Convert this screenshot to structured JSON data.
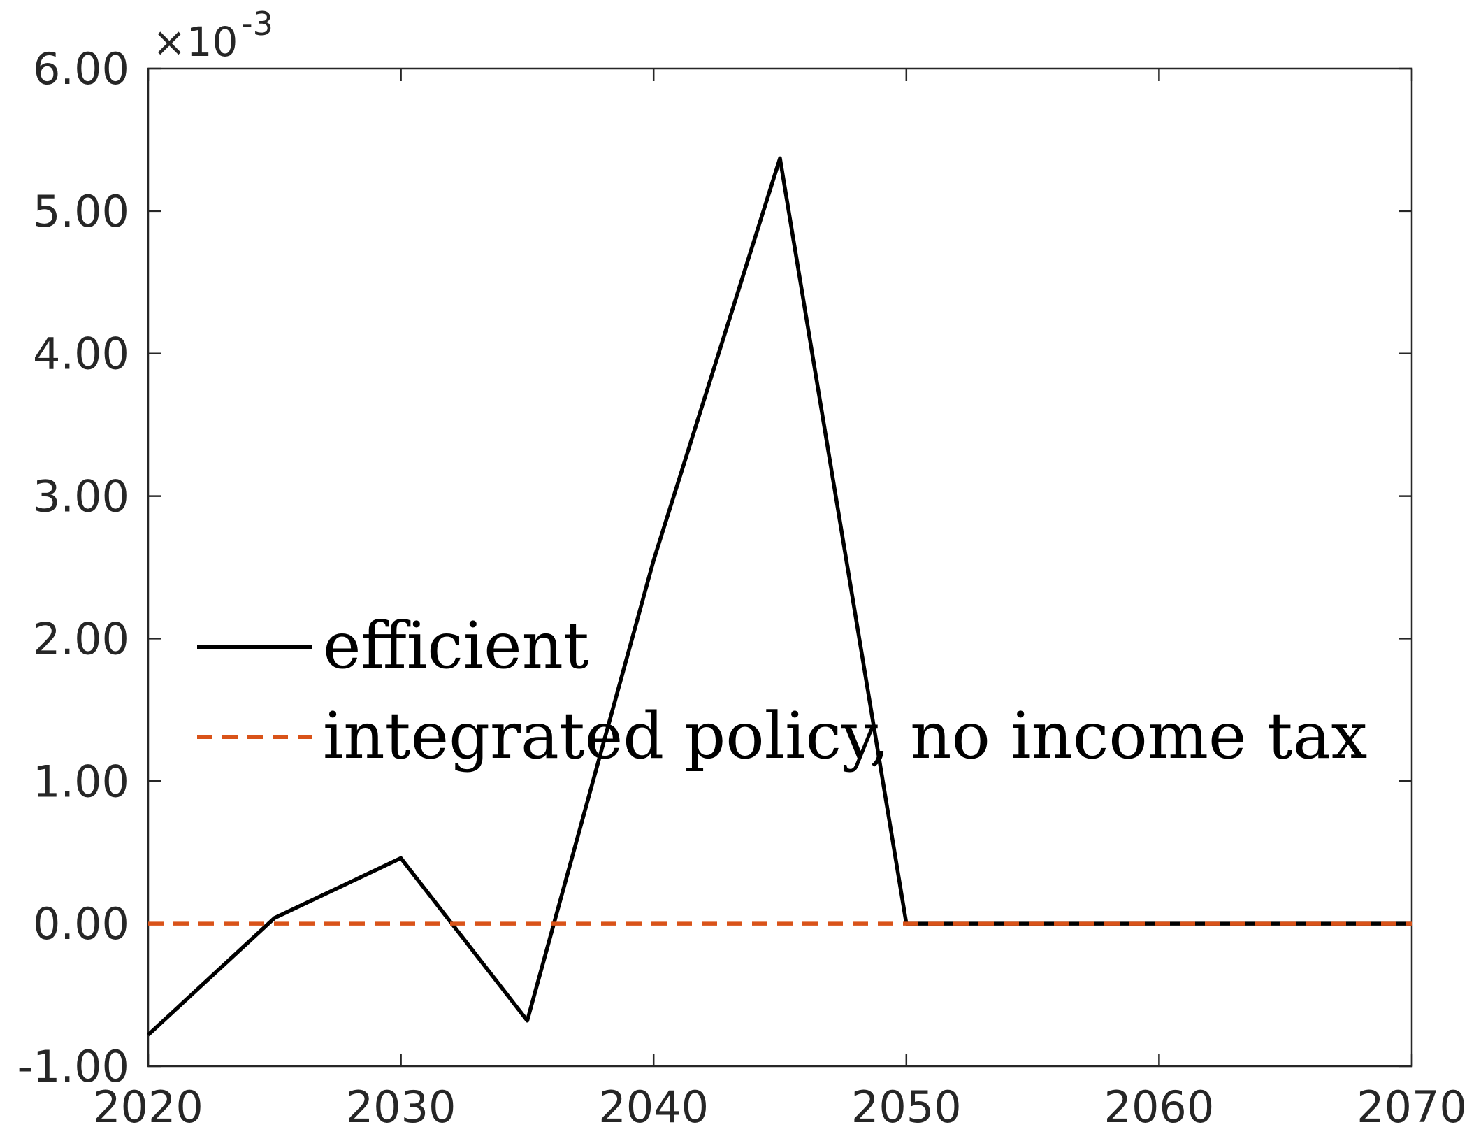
{
  "chart_data": {
    "type": "line",
    "title": "",
    "xlabel": "",
    "ylabel": "",
    "y_multiplier_label": "×10",
    "y_multiplier_exponent": "-3",
    "xlim": [
      2020,
      2070
    ],
    "ylim": [
      -1.0,
      6.0
    ],
    "x_ticks": [
      2020,
      2030,
      2040,
      2050,
      2060,
      2070
    ],
    "x_tick_labels": [
      "2020",
      "2030",
      "2040",
      "2050",
      "2060",
      "2070"
    ],
    "y_ticks": [
      -1,
      0,
      1,
      2,
      3,
      4,
      5,
      6
    ],
    "y_tick_labels": [
      "-1.00",
      "0.00",
      "1.00",
      "2.00",
      "3.00",
      "4.00",
      "5.00",
      "6.00"
    ],
    "grid": false,
    "legend_position": "middle-left",
    "x": [
      2020,
      2025,
      2030,
      2035,
      2040,
      2045,
      2050,
      2055,
      2060,
      2065,
      2070
    ],
    "series": [
      {
        "name": "efficient",
        "color": "#000000",
        "style": "solid",
        "values": [
          -0.78,
          0.04,
          0.46,
          -0.68,
          2.55,
          5.37,
          0.0,
          0.0,
          0.0,
          0.0,
          0.0
        ]
      },
      {
        "name": "integrated policy, no income tax",
        "color": "#D95319",
        "style": "dashed",
        "values": [
          0.0,
          0.0,
          0.0,
          0.0,
          0.0,
          0.0,
          0.0,
          0.0,
          0.0,
          0.0,
          0.0
        ]
      }
    ]
  }
}
